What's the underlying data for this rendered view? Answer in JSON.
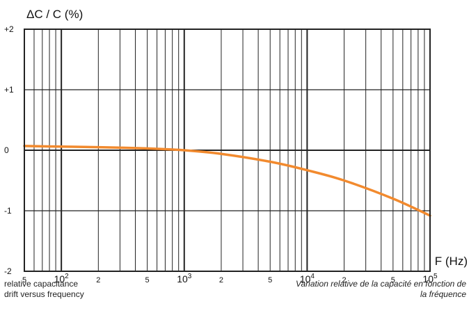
{
  "chart_data": {
    "type": "line",
    "title": "",
    "ylabel": "ΔC / C (%)",
    "xlabel": "F (Hz)",
    "x_scale": "log",
    "xlim": [
      50,
      100000
    ],
    "ylim": [
      -2,
      2
    ],
    "y_ticks": [
      {
        "value": 2,
        "label": "+2"
      },
      {
        "value": 1,
        "label": "+1"
      },
      {
        "value": 0,
        "label": "0"
      },
      {
        "value": -1,
        "label": "-1"
      },
      {
        "value": -2,
        "label": "-2"
      }
    ],
    "x_ticks": [
      {
        "value": 50,
        "label": "5",
        "sup": ""
      },
      {
        "value": 100,
        "label": "10",
        "sup": "2"
      },
      {
        "value": 200,
        "label": "2",
        "sup": ""
      },
      {
        "value": 500,
        "label": "5",
        "sup": ""
      },
      {
        "value": 1000,
        "label": "10",
        "sup": "3"
      },
      {
        "value": 2000,
        "label": "2",
        "sup": ""
      },
      {
        "value": 5000,
        "label": "5",
        "sup": ""
      },
      {
        "value": 10000,
        "label": "10",
        "sup": "4"
      },
      {
        "value": 20000,
        "label": "2",
        "sup": ""
      },
      {
        "value": 50000,
        "label": "5",
        "sup": ""
      },
      {
        "value": 100000,
        "label": "10",
        "sup": "5"
      }
    ],
    "grid": true,
    "series": [
      {
        "color": "#f28a2e",
        "x": [
          50,
          100,
          200,
          500,
          1000,
          2000,
          5000,
          10000,
          20000,
          50000,
          100000
        ],
        "y": [
          0.07,
          0.06,
          0.05,
          0.03,
          0.0,
          -0.06,
          -0.19,
          -0.33,
          -0.5,
          -0.8,
          -1.08
        ]
      }
    ]
  },
  "captions": {
    "left_line1": "relative capacitance",
    "left_line2": "drift versus frequency",
    "right_line1": "Variation relative de la capacité en fonction de",
    "right_line2": "la fréquence"
  }
}
